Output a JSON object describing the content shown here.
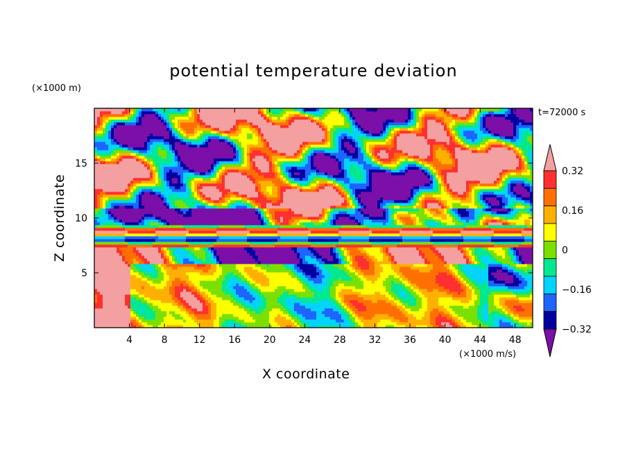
{
  "chart_data": {
    "type": "heatmap",
    "title": "potential temperature deviation",
    "xlabel": "X coordinate",
    "ylabel": "Z coordinate",
    "x_unit": "(×1000 m/s)",
    "y_unit": "(×1000 m)",
    "time_label": "t=72000 s",
    "xlim": [
      0,
      50
    ],
    "ylim": [
      0,
      20
    ],
    "x_ticks": [
      4,
      8,
      12,
      16,
      20,
      24,
      28,
      32,
      36,
      40,
      44,
      48
    ],
    "y_ticks": [
      5,
      10,
      15
    ],
    "colorbar": {
      "levels": [
        -0.4,
        -0.32,
        -0.24,
        -0.16,
        -0.08,
        0,
        0.08,
        0.16,
        0.24,
        0.32,
        0.4
      ],
      "labels": [
        "−0.32",
        "−0.16",
        "0",
        "0.16",
        "0.32"
      ],
      "label_values": [
        -0.32,
        -0.16,
        0,
        0.16,
        0.32
      ],
      "colors": [
        "#7b0fa8",
        "#0000a0",
        "#1e64ff",
        "#00d4ff",
        "#00e890",
        "#7be000",
        "#ffff00",
        "#ffb000",
        "#ff7000",
        "#ff3030",
        "#f5a0a0"
      ],
      "extend": "both"
    },
    "grid": false
  }
}
